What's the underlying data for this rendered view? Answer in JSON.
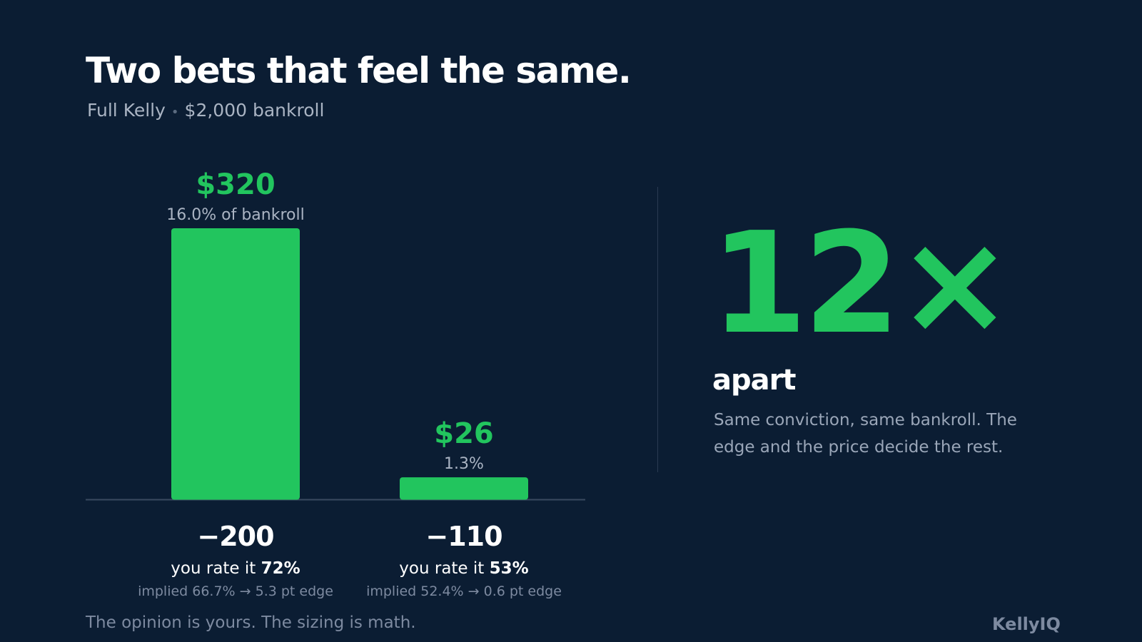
{
  "header": {
    "title": "Two bets that feel the same.",
    "subtitle_mode": "Full Kelly",
    "subtitle_separator": "•",
    "subtitle_bankroll": "$2,000 bankroll"
  },
  "chart_data": {
    "type": "bar",
    "categories": [
      "−200",
      "−110"
    ],
    "values": [
      320,
      26
    ],
    "value_labels": [
      "$320",
      "$26"
    ],
    "pct_labels": [
      "16.0% of bankroll",
      "1.3%"
    ],
    "rating_prefix": [
      "you rate it",
      "you rate it"
    ],
    "rating_values": [
      "72%",
      "53%"
    ],
    "edge_notes": [
      "implied 66.7% → 5.3 pt edge",
      "implied 52.4% → 0.6 pt edge"
    ],
    "ylim": [
      0,
      320
    ],
    "grid": false,
    "colors": {
      "bar": "#22c55e",
      "baseline": "#3a4a60"
    }
  },
  "callout": {
    "multiplier": "12×",
    "label": "apart",
    "description": "Same conviction, same bankroll. The edge and the price decide the rest."
  },
  "footer": {
    "note": "The opinion is yours. The sizing is math.",
    "brand": "KellyIQ"
  },
  "colors": {
    "background": "#0b1d33",
    "accent": "#22c55e",
    "muted_text": "#aab4c3",
    "dim_text": "#7d8aa0"
  }
}
